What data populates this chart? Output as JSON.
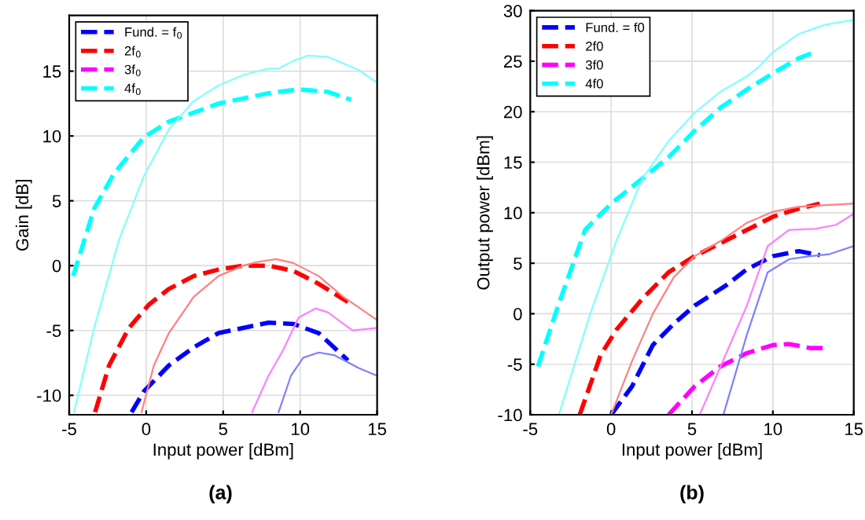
{
  "chart_data": [
    {
      "type": "line",
      "xlabel": "Input power [dBm]",
      "ylabel": "Gain [dB]",
      "xlim": [
        -5,
        15
      ],
      "ylim": [
        -11.5,
        19.3
      ],
      "xticks": [
        -5,
        0,
        5,
        10,
        15
      ],
      "yticks": [
        -10,
        -5,
        0,
        5,
        10,
        15
      ],
      "grid": true,
      "legend": "top left",
      "annotations": [
        "(a)"
      ],
      "series": [
        {
          "name": "Fund. = f$_{0}$",
          "color": "#0000ff",
          "line_style": "dashed",
          "x": [
            -0.95,
            -0.15,
            1.47,
            3.09,
            4.7,
            6.3,
            7.94,
            9.56,
            11.2,
            13.1
          ],
          "values": [
            -11.3,
            -9.7,
            -7.7,
            -6.3,
            -5.2,
            -4.8,
            -4.4,
            -4.5,
            -5.2,
            -7.3
          ]
        },
        {
          "name": "2f$_{0}$",
          "color": "#ff0000",
          "line_style": "dashed",
          "x": [
            -3.32,
            -2.41,
            -1.12,
            0.18,
            1.47,
            3.09,
            4.7,
            6.3,
            7.94,
            9.56,
            11.2,
            13.1
          ],
          "values": [
            -11.3,
            -7.7,
            -4.8,
            -3.0,
            -1.8,
            -0.8,
            -0.3,
            0,
            0,
            -0.4,
            -1.4,
            -2.8
          ]
        },
        {
          "name": "3f$_{0}$",
          "color": "#ff00ff",
          "line_style": "dashed"
        },
        {
          "name": "4f$_{0}$",
          "color": "#00ffff",
          "line_style": "dashed",
          "x": [
            -4.74,
            -3.38,
            -2.09,
            -0.15,
            1.47,
            4.7,
            7.94,
            9.9,
            11.8,
            13.3
          ],
          "values": [
            -0.8,
            4.4,
            7.1,
            9.9,
            11.1,
            12.5,
            13.3,
            13.6,
            13.4,
            12.8
          ]
        },
        {
          "color": "#8080ff",
          "line_style": "solid",
          "x": [
            8.6,
            9.4,
            10.2,
            11.2,
            12.2,
            13.8,
            15
          ],
          "values": [
            -11.3,
            -8.5,
            -7.1,
            -6.7,
            -6.9,
            -7.9,
            -8.5
          ]
        },
        {
          "color": "#ff8080",
          "line_style": "solid",
          "x": [
            -0.3,
            0.5,
            1.47,
            3.09,
            4.7,
            6.3,
            7.3,
            8.43,
            9.56,
            11.2,
            12.8,
            15
          ],
          "values": [
            -11.3,
            -7.7,
            -5.2,
            -2.4,
            -0.8,
            0,
            0.3,
            0.5,
            0.2,
            -0.8,
            -2.4,
            -4.2
          ]
        },
        {
          "color": "#ff80ff",
          "line_style": "solid",
          "x": [
            6.88,
            7.94,
            8.9,
            9.9,
            11.0,
            11.8,
            13.4,
            15
          ],
          "values": [
            -11.3,
            -8.5,
            -6.5,
            -4.0,
            -3.3,
            -3.6,
            -5.0,
            -4.8
          ]
        },
        {
          "color": "#80ffff",
          "line_style": "solid",
          "x": [
            -4.68,
            -3.38,
            -1.76,
            -0.15,
            1.47,
            3.09,
            4.7,
            6.3,
            7.94,
            8.6,
            9.56,
            10.5,
            11.8,
            13.8,
            15
          ],
          "values": [
            -11.3,
            -4.8,
            2.0,
            6.9,
            10.5,
            12.7,
            13.9,
            14.7,
            15.2,
            15.2,
            15.8,
            16.2,
            16.1,
            15.1,
            14.1
          ]
        }
      ]
    },
    {
      "type": "line",
      "xlabel": "Input power [dBm]",
      "ylabel": "Output power [dBm]",
      "xlim": [
        -5,
        15
      ],
      "ylim": [
        -10,
        30
      ],
      "xticks": [
        -5,
        0,
        5,
        10,
        15
      ],
      "yticks": [
        -10,
        -5,
        0,
        5,
        10,
        15,
        20,
        25,
        30
      ],
      "grid": true,
      "legend": "top left",
      "annotations": [
        "(b)"
      ],
      "series": [
        {
          "name": "Fund. = f0",
          "color": "#0000ff",
          "line_style": "dashed",
          "x": [
            0,
            1.29,
            2.58,
            3.87,
            5.16,
            7.1,
            8.39,
            10,
            11.6,
            12.9
          ],
          "values": [
            -10,
            -7.2,
            -3.1,
            -1.0,
            0.8,
            2.8,
            4.4,
            5.7,
            6.2,
            5.8
          ]
        },
        {
          "name": "2f0",
          "color": "#ff0000",
          "line_style": "dashed",
          "x": [
            -1.94,
            -0.65,
            0.32,
            1.94,
            3.55,
            5.16,
            6.77,
            8.39,
            10,
            11.6,
            12.9
          ],
          "values": [
            -10,
            -4.1,
            -1.6,
            1.5,
            4.1,
            5.7,
            7.0,
            8.3,
            9.6,
            10.4,
            10.9
          ]
        },
        {
          "name": "3f0",
          "color": "#ff00ff",
          "line_style": "dashed",
          "x": [
            3.55,
            5.16,
            6.77,
            8.39,
            10,
            11,
            12.3,
            13.1
          ],
          "values": [
            -10,
            -7.2,
            -5.2,
            -3.9,
            -3.1,
            -3.0,
            -3.4,
            -3.4
          ]
        },
        {
          "name": "4f0",
          "color": "#00ffff",
          "line_style": "dashed",
          "x": [
            -4.52,
            -3.23,
            -1.61,
            0,
            1.94,
            3.55,
            5.16,
            6.77,
            8.39,
            10,
            11.6,
            12.6
          ],
          "values": [
            -5.2,
            1.0,
            8.3,
            10.9,
            13.4,
            15.5,
            18.1,
            20.4,
            22.2,
            23.8,
            25.3,
            25.9
          ]
        },
        {
          "color": "#8080ff",
          "line_style": "solid",
          "x": [
            6.94,
            8.39,
            9.68,
            11,
            12.3,
            13.5,
            15
          ],
          "values": [
            -10,
            -2.1,
            4.1,
            5.4,
            5.7,
            5.9,
            6.7
          ]
        },
        {
          "color": "#ff8080",
          "line_style": "solid",
          "x": [
            0,
            1.29,
            2.58,
            3.87,
            5.16,
            6.77,
            8.39,
            10,
            11.6,
            15
          ],
          "values": [
            -10,
            -4.7,
            0,
            3.6,
            5.7,
            7.2,
            9.0,
            10.1,
            10.6,
            10.9
          ]
        },
        {
          "color": "#ff80ff",
          "line_style": "solid",
          "x": [
            5.48,
            6.77,
            8.39,
            9.68,
            11,
            12.6,
            13.9,
            15
          ],
          "values": [
            -10,
            -5.2,
            0.8,
            6.7,
            8.3,
            8.4,
            8.8,
            9.9
          ]
        },
        {
          "color": "#80ffff",
          "line_style": "solid",
          "x": [
            -3.23,
            -1.29,
            0.32,
            1.94,
            3.55,
            5.16,
            6.77,
            8.39,
            9.03,
            10,
            11.6,
            13.2,
            15
          ],
          "values": [
            -10,
            0,
            7.2,
            13.4,
            17.1,
            19.9,
            22.0,
            23.5,
            24.3,
            25.9,
            27.7,
            28.6,
            29.1
          ]
        }
      ]
    }
  ]
}
